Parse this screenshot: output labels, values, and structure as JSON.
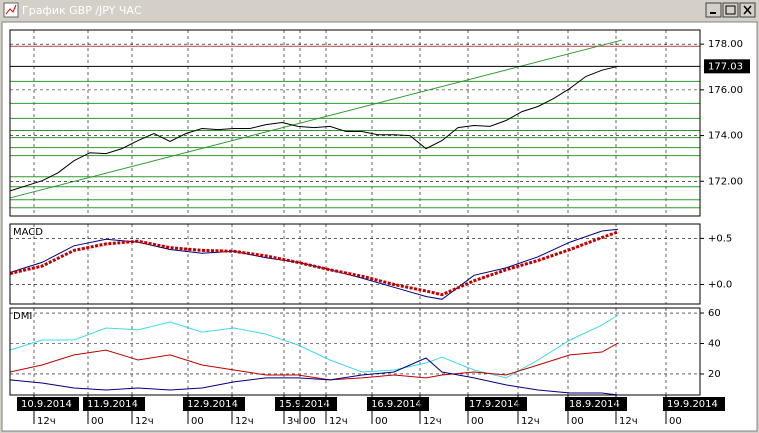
{
  "window": {
    "title": "График GBP /JPY ЧАС"
  },
  "chart_data": [
    {
      "type": "line",
      "xlim": [
        0,
        172.5
      ],
      "ylim": [
        170.48,
        178.62
      ],
      "yticks": [
        {
          "value": 178,
          "label": "178.00"
        },
        {
          "value": 176,
          "label": "176.00"
        },
        {
          "value": 174,
          "label": "174.00"
        },
        {
          "value": 172,
          "label": "172.00"
        }
      ],
      "grid": true,
      "x": [
        0,
        4,
        8,
        12,
        16,
        20,
        24,
        28,
        32,
        36,
        40,
        44,
        48,
        52,
        56,
        60,
        64,
        68,
        72,
        76,
        80,
        84,
        88,
        92,
        96,
        100,
        104,
        108,
        112,
        116,
        120,
        124,
        128,
        132,
        136,
        140,
        144,
        148,
        152
      ],
      "series": [
        {
          "color": "#000000",
          "values": [
            171.58,
            171.8,
            172.02,
            172.37,
            172.9,
            173.25,
            173.21,
            173.43,
            173.78,
            174.09,
            173.74,
            174.09,
            174.31,
            174.26,
            174.31,
            174.31,
            174.48,
            174.57,
            174.4,
            174.35,
            174.4,
            174.18,
            174.18,
            174.04,
            174.04,
            174.0,
            173.43,
            173.78,
            174.35,
            174.44,
            174.4,
            174.66,
            175.05,
            175.27,
            175.63,
            176.07,
            176.59,
            176.86,
            177.03
          ]
        }
      ],
      "levels": [
        {
          "value": 177.91,
          "color": "#c04040"
        },
        {
          "value": 176.37,
          "color": "#2e9a2e"
        },
        {
          "value": 175.41,
          "color": "#2e9a2e"
        },
        {
          "value": 174.75,
          "color": "#2e9a2e"
        },
        {
          "value": 174.22,
          "color": "#2e9a2e"
        },
        {
          "value": 173.91,
          "color": "#2e9a2e"
        },
        {
          "value": 173.47,
          "color": "#2e9a2e"
        },
        {
          "value": 173.12,
          "color": "#2e9a2e"
        },
        {
          "value": 172.2,
          "color": "#2e9a2e"
        },
        {
          "value": 171.76,
          "color": "#2e9a2e"
        },
        {
          "value": 171.19,
          "color": "#2e9a2e"
        },
        {
          "value": 170.84,
          "color": "#2e9a2e"
        }
      ],
      "trendline": {
        "color": "#2e9a2e",
        "x": [
          0,
          153
        ],
        "values": [
          171.27,
          178.18
        ]
      },
      "last_price": 177.03
    },
    {
      "type": "line",
      "title": "MACD",
      "xlim": [
        0,
        172.5
      ],
      "ylim": [
        -0.211,
        0.656
      ],
      "yticks": [
        {
          "value": 0.5,
          "label": "+0.5"
        },
        {
          "value": 0,
          "label": "+0.0"
        }
      ],
      "grid": true,
      "x": [
        0,
        8,
        16,
        24,
        32,
        40,
        48,
        56,
        64,
        72,
        80,
        88,
        96,
        104,
        108,
        116,
        124,
        132,
        140,
        148,
        152
      ],
      "series": [
        {
          "color": "#000080",
          "values": [
            0.13,
            0.24,
            0.42,
            0.49,
            0.46,
            0.38,
            0.34,
            0.36,
            0.29,
            0.24,
            0.16,
            0.07,
            -0.03,
            -0.13,
            -0.16,
            0.1,
            0.18,
            0.3,
            0.46,
            0.58,
            0.6
          ]
        },
        {
          "color": "#c00000",
          "style": "dots",
          "values": [
            0.12,
            0.2,
            0.37,
            0.44,
            0.47,
            0.4,
            0.37,
            0.36,
            0.31,
            0.24,
            0.16,
            0.09,
            0.0,
            -0.07,
            -0.11,
            0.04,
            0.16,
            0.26,
            0.38,
            0.51,
            0.57
          ]
        }
      ]
    },
    {
      "type": "line",
      "title": "DMI",
      "xlim": [
        0,
        172.5
      ],
      "ylim": [
        6.2,
        63.3
      ],
      "yticks": [
        60,
        40,
        20
      ],
      "grid": true,
      "x": [
        0,
        8,
        16,
        24,
        32,
        40,
        48,
        56,
        64,
        72,
        80,
        88,
        96,
        104,
        108,
        116,
        124,
        132,
        140,
        148,
        152
      ],
      "series": [
        {
          "color": "#40d8e8",
          "values": [
            35.7,
            42.3,
            42.3,
            50.2,
            48.9,
            54.1,
            47.5,
            50.2,
            46.2,
            39.0,
            29.2,
            21.3,
            22.6,
            27.2,
            31.1,
            22.6,
            17.4,
            29.2,
            42.3,
            52.1,
            58.7
          ]
        },
        {
          "color": "#c00000",
          "values": [
            21.3,
            25.9,
            32.5,
            35.7,
            29.2,
            32.5,
            25.9,
            22.6,
            19.3,
            19.3,
            16.1,
            17.4,
            19.3,
            17.4,
            19.3,
            21.3,
            19.3,
            25.9,
            32.5,
            34.4,
            40.3
          ]
        },
        {
          "color": "#000080",
          "values": [
            16.1,
            14.1,
            10.8,
            9.5,
            10.8,
            9.5,
            10.8,
            14.8,
            17.4,
            17.4,
            16.1,
            19.3,
            21.3,
            30.5,
            21.3,
            17.4,
            12.8,
            9.5,
            7.5,
            7.5,
            6.2
          ]
        }
      ],
      "xticks": [
        {
          "value": 6,
          "label": "12ч"
        },
        {
          "value": 19.5,
          "label": "00"
        },
        {
          "value": 30.5,
          "label": "12ч"
        },
        {
          "value": 44.5,
          "label": "00"
        },
        {
          "value": 55.5,
          "label": "12ч"
        },
        {
          "value": 68.5,
          "label": "3ч"
        },
        {
          "value": 72.5,
          "label": "00"
        },
        {
          "value": 79,
          "label": "12ч"
        },
        {
          "value": 90.5,
          "label": "00"
        },
        {
          "value": 102.5,
          "label": "12ч"
        },
        {
          "value": 114.5,
          "label": "00"
        },
        {
          "value": 127,
          "label": "12ч"
        },
        {
          "value": 139.5,
          "label": "00"
        },
        {
          "value": 151.5,
          "label": "12ч"
        },
        {
          "value": 164,
          "label": "00"
        }
      ],
      "date_ticks": [
        {
          "value": 1,
          "label": "10.9.2014"
        },
        {
          "value": 17.5,
          "label": "11.9.2014"
        },
        {
          "value": 42.5,
          "label": "12.9.2014"
        },
        {
          "value": 65.5,
          "label": "15.9.2014"
        },
        {
          "value": 88.5,
          "label": "16.9.2014"
        },
        {
          "value": 113,
          "label": "17.9.2014"
        },
        {
          "value": 138,
          "label": "18.9.2014"
        },
        {
          "value": 162.5,
          "label": "19.9.2014"
        }
      ]
    }
  ]
}
